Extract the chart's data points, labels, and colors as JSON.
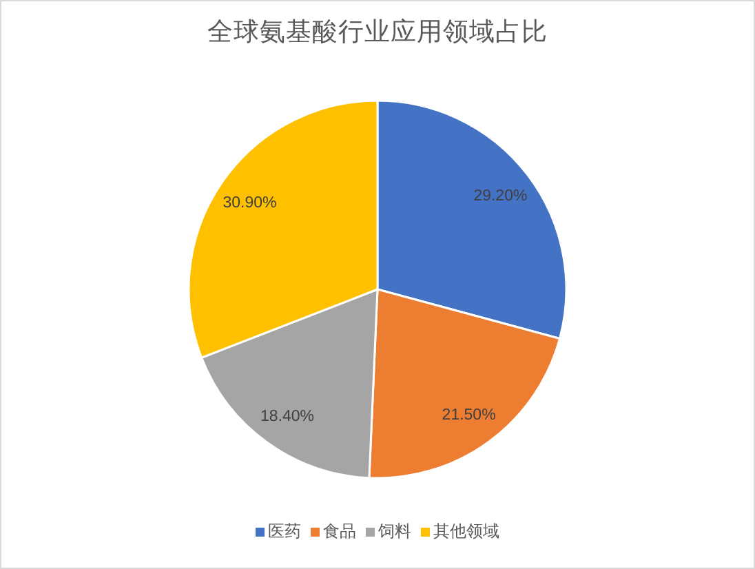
{
  "chart_data": {
    "type": "pie",
    "title": "全球氨基酸行业应用领域占比",
    "categories": [
      "医药",
      "食品",
      "饲料",
      "其他领域"
    ],
    "values": [
      29.2,
      21.5,
      18.4,
      30.9
    ],
    "colors": [
      "#4472c4",
      "#ed7d31",
      "#a5a5a5",
      "#ffc000"
    ],
    "value_labels": [
      "29.20%",
      "21.50%",
      "18.40%",
      "30.90%"
    ],
    "legend": "bottom"
  }
}
